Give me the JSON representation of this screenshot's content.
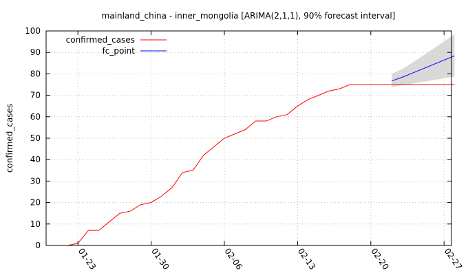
{
  "chart_data": {
    "type": "line",
    "title": "mainland_china - inner_mongolia [ARIMA(2,1,1), 90% forecast interval]",
    "xlabel": "",
    "ylabel": "confirmed_cases",
    "x_ticks": [
      "01-23",
      "01-30",
      "02-06",
      "02-13",
      "02-20",
      "02-27"
    ],
    "ylim": [
      0,
      100
    ],
    "y_ticks": [
      0,
      10,
      20,
      30,
      40,
      50,
      60,
      70,
      80,
      90,
      100
    ],
    "grid": true,
    "legend_position": "top-left",
    "series": [
      {
        "name": "confirmed_cases",
        "color": "#ff0000",
        "x": [
          "01-22",
          "01-23",
          "01-24",
          "01-25",
          "01-26",
          "01-27",
          "01-28",
          "01-29",
          "01-30",
          "01-31",
          "02-01",
          "02-02",
          "02-03",
          "02-04",
          "02-05",
          "02-06",
          "02-07",
          "02-08",
          "02-09",
          "02-10",
          "02-11",
          "02-12",
          "02-13",
          "02-14",
          "02-15",
          "02-16",
          "02-17",
          "02-18",
          "02-19",
          "02-20",
          "02-21",
          "02-22",
          "02-23",
          "02-24",
          "02-25",
          "02-26",
          "02-27",
          "02-28"
        ],
        "values": [
          0,
          1,
          7,
          7,
          11,
          15,
          16,
          19,
          20,
          23,
          27,
          34,
          35,
          42,
          46,
          50,
          52,
          54,
          58,
          58,
          60,
          61,
          65,
          68,
          70,
          72,
          73,
          75,
          75,
          75,
          75,
          75,
          75,
          75,
          75,
          75,
          75,
          75
        ]
      },
      {
        "name": "fc_point",
        "color": "#0000ff",
        "x": [
          "02-22",
          "02-23",
          "02-24",
          "02-25",
          "02-26",
          "02-27",
          "02-28"
        ],
        "values": [
          76.7,
          78.4,
          80.4,
          82.4,
          84.4,
          86.4,
          88.4
        ]
      }
    ],
    "forecast_interval": {
      "color": "#d9d9d9",
      "x": [
        "02-22",
        "02-23",
        "02-24",
        "02-25",
        "02-26",
        "02-27",
        "02-28"
      ],
      "lower": [
        73.8,
        74.7,
        75.5,
        76.3,
        77.1,
        77.9,
        78.7
      ],
      "upper": [
        80.0,
        82.2,
        85.3,
        88.5,
        91.8,
        95.1,
        98.5
      ]
    }
  }
}
